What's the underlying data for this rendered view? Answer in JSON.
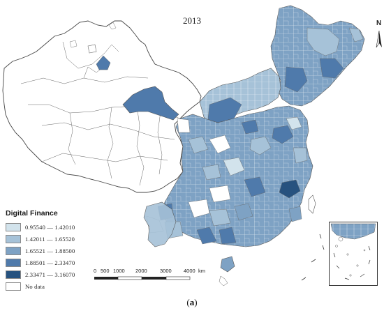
{
  "map": {
    "year": "2013",
    "north_label": "N",
    "caption_letter": "a",
    "legend": {
      "title": "Digital Finance",
      "classes": [
        {
          "label": "0.95540 — 1.42010",
          "color": "#d2e3ec"
        },
        {
          "label": "1.42011 — 1.65520",
          "color": "#a6c2d8"
        },
        {
          "label": "1.65521 — 1.88500",
          "color": "#7ea2c4"
        },
        {
          "label": "1.88501 — 2.33470",
          "color": "#4f7aab"
        },
        {
          "label": "2.33471 — 3.16070",
          "color": "#27527f"
        },
        {
          "label": "No data",
          "color": "#ffffff"
        }
      ]
    },
    "scale_bar": {
      "ticks": [
        "0",
        "500",
        "1000",
        "2000",
        "3000",
        "4000"
      ],
      "unit": "km"
    }
  }
}
